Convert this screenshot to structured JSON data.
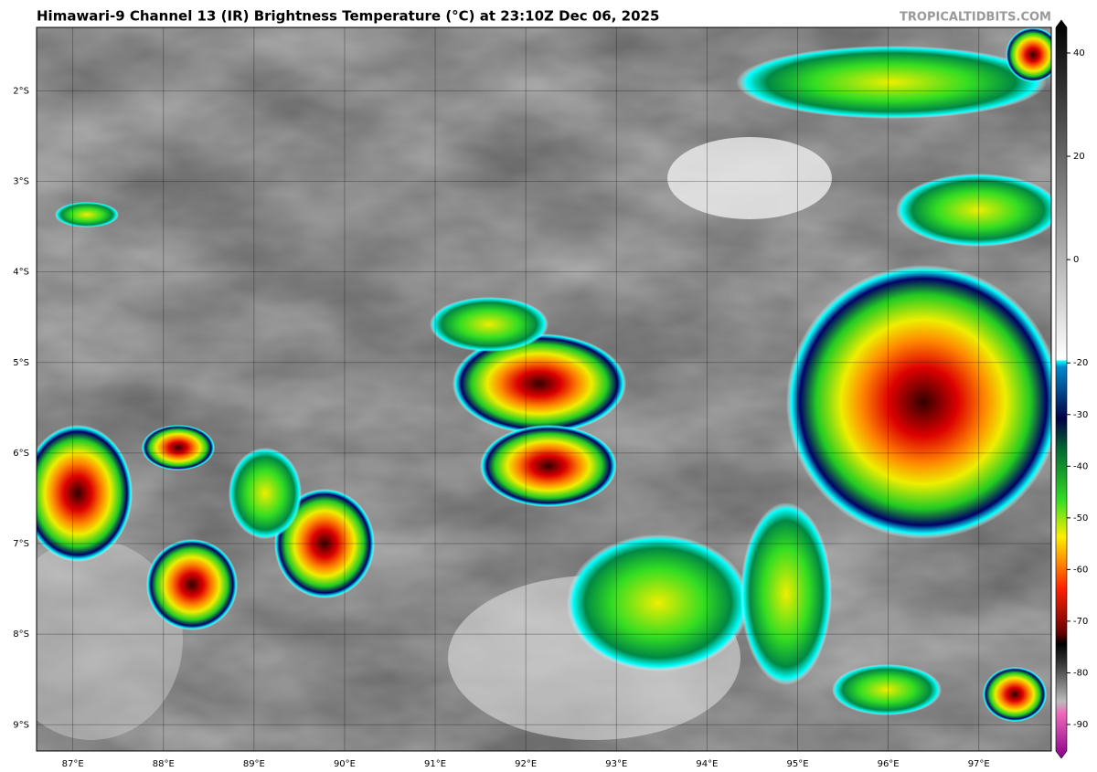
{
  "header": {
    "title": "Himawari-9 Channel 13 (IR) Brightness Temperature (°C) at 23:10Z Dec 06, 2025",
    "source": "TROPICALTIDBITS.COM"
  },
  "map": {
    "xlim": [
      86.6,
      97.8
    ],
    "ylim": [
      -9.29,
      -1.3
    ],
    "lat_ticks": [
      {
        "value": -2,
        "label": "2°S"
      },
      {
        "value": -3,
        "label": "3°S"
      },
      {
        "value": -4,
        "label": "4°S"
      },
      {
        "value": -5,
        "label": "5°S"
      },
      {
        "value": -6,
        "label": "6°S"
      },
      {
        "value": -7,
        "label": "7°S"
      },
      {
        "value": -8,
        "label": "8°S"
      },
      {
        "value": -9,
        "label": "9°S"
      }
    ],
    "lon_ticks": [
      {
        "value": 87,
        "label": "87°E"
      },
      {
        "value": 88,
        "label": "88°E"
      },
      {
        "value": 89,
        "label": "89°E"
      },
      {
        "value": 90,
        "label": "90°E"
      },
      {
        "value": 91,
        "label": "91°E"
      },
      {
        "value": 92,
        "label": "92°E"
      },
      {
        "value": 93,
        "label": "93°E"
      },
      {
        "value": 94,
        "label": "94°E"
      },
      {
        "value": 95,
        "label": "95°E"
      },
      {
        "value": 96,
        "label": "96°E"
      },
      {
        "value": 97,
        "label": "97°E"
      }
    ]
  },
  "colorbar": {
    "lim": [
      -90,
      40
    ],
    "ticks": [
      40,
      20,
      0,
      -20,
      -30,
      -40,
      -50,
      -60,
      -70,
      -80,
      -90
    ]
  }
}
